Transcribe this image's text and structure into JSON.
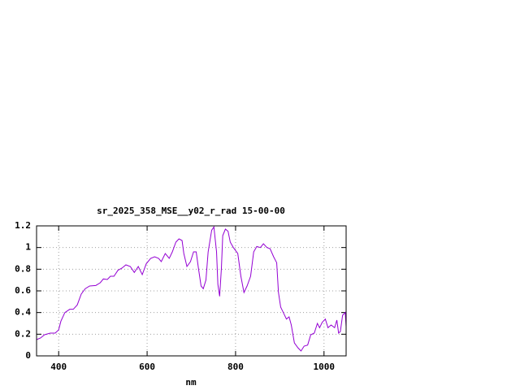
{
  "chart_data": {
    "type": "line",
    "title": "sr_2025_358_MSE__y02_r_rad 15-00-00",
    "x_label": "nm",
    "x": [
      350,
      359,
      368,
      381,
      392,
      400,
      405,
      414,
      425,
      433,
      442,
      451,
      460,
      470,
      484,
      494,
      501,
      510,
      517,
      525,
      534,
      543,
      552,
      562,
      571,
      580,
      589,
      598,
      608,
      617,
      626,
      632,
      641,
      650,
      657,
      665,
      672,
      679,
      683,
      690,
      698,
      705,
      711,
      716,
      722,
      727,
      733,
      738,
      746,
      751,
      757,
      760,
      764,
      768,
      771,
      777,
      783,
      788,
      795,
      805,
      812,
      819,
      826,
      834,
      841,
      848,
      856,
      863,
      871,
      878,
      886,
      893,
      897,
      902,
      908,
      915,
      921,
      926,
      933,
      941,
      948,
      955,
      963,
      970,
      978,
      985,
      990,
      996,
      1003,
      1009,
      1016,
      1024,
      1029,
      1033,
      1037,
      1042,
      1048,
      1050
    ],
    "values": [
      0.15,
      0.165,
      0.195,
      0.21,
      0.21,
      0.24,
      0.32,
      0.4,
      0.43,
      0.43,
      0.47,
      0.57,
      0.62,
      0.645,
      0.65,
      0.675,
      0.71,
      0.705,
      0.735,
      0.735,
      0.79,
      0.81,
      0.84,
      0.825,
      0.77,
      0.825,
      0.75,
      0.85,
      0.9,
      0.915,
      0.9,
      0.87,
      0.945,
      0.9,
      0.96,
      1.05,
      1.08,
      1.065,
      0.945,
      0.825,
      0.87,
      0.96,
      0.96,
      0.81,
      0.645,
      0.62,
      0.7,
      0.96,
      1.16,
      1.19,
      0.96,
      0.66,
      0.55,
      0.81,
      1.11,
      1.17,
      1.15,
      1.05,
      1.0,
      0.945,
      0.735,
      0.585,
      0.645,
      0.735,
      0.96,
      1.01,
      1.0,
      1.035,
      1.0,
      0.99,
      0.915,
      0.86,
      0.585,
      0.45,
      0.4,
      0.34,
      0.36,
      0.285,
      0.12,
      0.075,
      0.045,
      0.09,
      0.1,
      0.195,
      0.21,
      0.3,
      0.26,
      0.31,
      0.34,
      0.26,
      0.285,
      0.26,
      0.33,
      0.21,
      0.225,
      0.375,
      0.4,
      0.27
    ],
    "color": "#9400d3",
    "xlim": [
      350,
      1050
    ],
    "xticks": [
      400,
      600,
      800,
      1000
    ],
    "ylim": [
      0,
      1.2
    ],
    "yticks": [
      0,
      0.2,
      0.4,
      0.6,
      0.8,
      1,
      1.2
    ],
    "grid": true
  }
}
